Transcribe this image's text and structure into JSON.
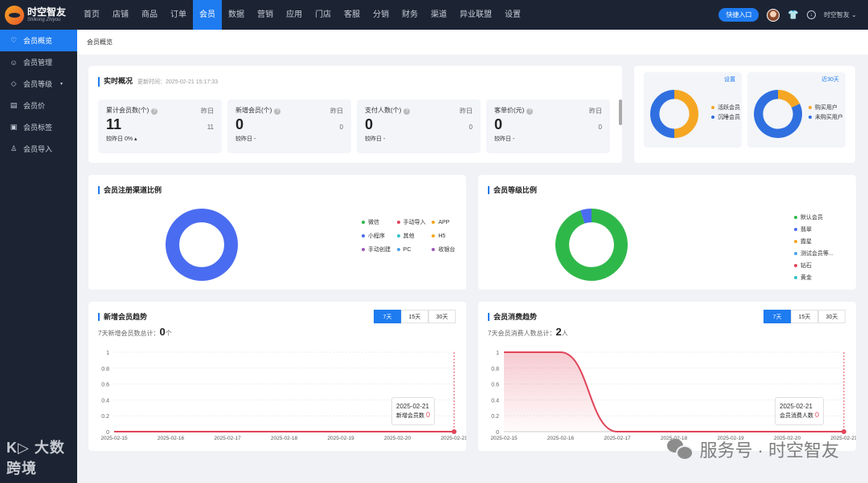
{
  "brand": {
    "name": "时空智友",
    "sub": "Shikong Zhiyou"
  },
  "nav": [
    "首页",
    "店铺",
    "商品",
    "订单",
    "会员",
    "数据",
    "营销",
    "应用",
    "门店",
    "客服",
    "分销",
    "财务",
    "渠道",
    "异业联盟",
    "设置"
  ],
  "nav_active": 4,
  "topright": {
    "quick": "快捷入口",
    "user": "时空智友 ⌄"
  },
  "sidebar": [
    {
      "icon": "heart-icon",
      "glyph": "♡",
      "label": "会员概览",
      "active": true
    },
    {
      "icon": "users-icon",
      "glyph": "☺",
      "label": "会员管理"
    },
    {
      "icon": "diamond-icon",
      "glyph": "◇",
      "label": "会员等级",
      "caret": "▾"
    },
    {
      "icon": "price-icon",
      "glyph": "▤",
      "label": "会员价"
    },
    {
      "icon": "tag-icon",
      "glyph": "▣",
      "label": "会员标签"
    },
    {
      "icon": "user-import-icon",
      "glyph": "♙",
      "label": "会员导入"
    }
  ],
  "breadcrumb": "会员概览",
  "realtime": {
    "title": "实时概况",
    "update": "更新时间：2025-02-21 15:17:33",
    "stats": [
      {
        "label": "累计会员数(个)",
        "yest_label": "昨日",
        "value": "11",
        "yest": "11",
        "cmp": "较昨日 0% ▴"
      },
      {
        "label": "新增会员(个)",
        "yest_label": "昨日",
        "value": "0",
        "yest": "0",
        "cmp": "较昨日 -"
      },
      {
        "label": "支付人数(个)",
        "yest_label": "昨日",
        "value": "0",
        "yest": "0",
        "cmp": "较昨日 -"
      },
      {
        "label": "客单价(元)",
        "yest_label": "昨日",
        "value": "0",
        "yest": "0",
        "cmp": "较昨日 -"
      }
    ]
  },
  "mini": [
    {
      "link": "设置",
      "legend": [
        {
          "label": "活跃会员",
          "color": "#f5a623"
        },
        {
          "label": "沉睡会员",
          "color": "#2f6fe0"
        }
      ]
    },
    {
      "link": "近30天",
      "legend": [
        {
          "label": "购买用户",
          "color": "#f5a623"
        },
        {
          "label": "未购买用户",
          "color": "#2f6fe0"
        }
      ]
    }
  ],
  "channel": {
    "title": "会员注册渠道比例",
    "legend": [
      {
        "label": "微信",
        "color": "#2fb84a"
      },
      {
        "label": "手动导入",
        "color": "#e0455a"
      },
      {
        "label": "APP",
        "color": "#f5a623"
      },
      {
        "label": "小程序",
        "color": "#4a6cf0"
      },
      {
        "label": "其他",
        "color": "#34c2c9"
      },
      {
        "label": "H5",
        "color": "#f5a623"
      },
      {
        "label": "手动创建",
        "color": "#9b59b6"
      },
      {
        "label": "PC",
        "color": "#4aa3f0"
      },
      {
        "label": "收银台",
        "color": "#9b59b6"
      }
    ]
  },
  "level": {
    "title": "会员等级比例",
    "legend": [
      {
        "label": "默认会员",
        "color": "#2fb84a"
      },
      {
        "label": "翡翠",
        "color": "#4a6cf0"
      },
      {
        "label": "霞星",
        "color": "#f5a623"
      },
      {
        "label": "测试会员等...",
        "color": "#4aa3f0"
      },
      {
        "label": "钻石",
        "color": "#e0455a"
      },
      {
        "label": "黄金",
        "color": "#34c2c9"
      }
    ]
  },
  "new_trend": {
    "title": "新增会员趋势",
    "tabs": [
      "7天",
      "15天",
      "30天"
    ],
    "total_label": "7天新增会员数总计：",
    "total": "0",
    "unit": "个",
    "tip_date": "2025-02-21",
    "tip_label": "新增会员数",
    "tip_value": "0"
  },
  "consume_trend": {
    "title": "会员消费趋势",
    "tabs": [
      "7天",
      "15天",
      "30天"
    ],
    "total_label": "7天会员消费人数总计：",
    "total": "2",
    "unit": "人",
    "tip_date": "2025-02-21",
    "tip_label": "会员消费人数",
    "tip_value": "0"
  },
  "chart_data": [
    {
      "type": "pie",
      "title": "会员注册渠道比例",
      "categories": [
        "微信",
        "手动导入",
        "APP",
        "小程序",
        "其他",
        "H5",
        "手动创建",
        "PC",
        "收银台"
      ],
      "values": [
        0,
        0,
        0,
        100,
        0,
        0,
        0,
        0,
        0
      ],
      "colors": [
        "#2fb84a",
        "#e0455a",
        "#f5a623",
        "#4a6cf0",
        "#34c2c9",
        "#f5a623",
        "#9b59b6",
        "#4aa3f0",
        "#9b59b6"
      ]
    },
    {
      "type": "pie",
      "title": "会员等级比例",
      "categories": [
        "默认会员",
        "翡翠",
        "霞星",
        "测试会员等...",
        "钻石",
        "黄金"
      ],
      "values": [
        95,
        5,
        0,
        0,
        0,
        0
      ],
      "colors": [
        "#2fb84a",
        "#4a6cf0",
        "#f5a623",
        "#4aa3f0",
        "#e0455a",
        "#34c2c9"
      ]
    },
    {
      "type": "pie",
      "categories": [
        "活跃会员",
        "沉睡会员"
      ],
      "values": [
        50,
        50
      ],
      "colors": [
        "#f5a623",
        "#2f6fe0"
      ]
    },
    {
      "type": "pie",
      "categories": [
        "购买用户",
        "未购买用户"
      ],
      "values": [
        18,
        82
      ],
      "colors": [
        "#f5a623",
        "#2f6fe0"
      ]
    },
    {
      "type": "line",
      "title": "新增会员趋势",
      "x": [
        "2025-02-15",
        "2025-02-16",
        "2025-02-17",
        "2025-02-18",
        "2025-02-19",
        "2025-02-20",
        "2025-02-21"
      ],
      "y": [
        0,
        0,
        0,
        0,
        0,
        0,
        0
      ],
      "yticks": [
        0,
        0.2,
        0.4,
        0.6,
        0.8,
        1
      ],
      "ylim": [
        0,
        1
      ],
      "color": "#e0455a"
    },
    {
      "type": "area",
      "title": "会员消费趋势",
      "x": [
        "2025-02-15",
        "2025-02-16",
        "2025-02-17",
        "2025-02-18",
        "2025-02-19",
        "2025-02-20",
        "2025-02-21"
      ],
      "y": [
        1,
        1,
        0,
        0,
        0,
        0,
        0
      ],
      "yticks": [
        0,
        0.2,
        0.4,
        0.6,
        0.8,
        1
      ],
      "ylim": [
        0,
        1
      ],
      "color": "#e0455a"
    }
  ],
  "watermarks": {
    "left": "K▷ 大数跨境",
    "right": "服务号 · 时空智友"
  }
}
